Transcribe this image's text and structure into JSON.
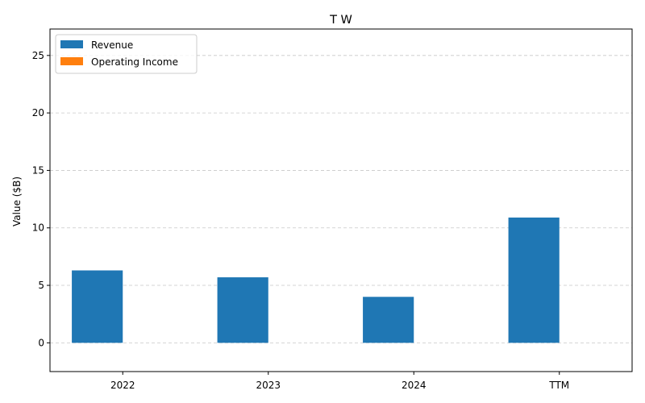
{
  "chart_data": {
    "type": "bar",
    "title": "T W",
    "xlabel": "",
    "ylabel": "Value ($B)",
    "categories": [
      "2022",
      "2023",
      "2024",
      "TTM"
    ],
    "series": [
      {
        "name": "Revenue",
        "values": [
          6.3,
          5.7,
          4.0,
          10.9
        ],
        "color": "#1f77b4"
      },
      {
        "name": "Operating Income",
        "values": [
          0,
          0,
          0,
          0
        ],
        "color": "#ff7f0e"
      }
    ],
    "ylim": [
      -2.5,
      27.3
    ],
    "yticks": [
      0,
      5,
      10,
      15,
      20,
      25
    ],
    "grid": true,
    "legend_position": "top-left"
  }
}
